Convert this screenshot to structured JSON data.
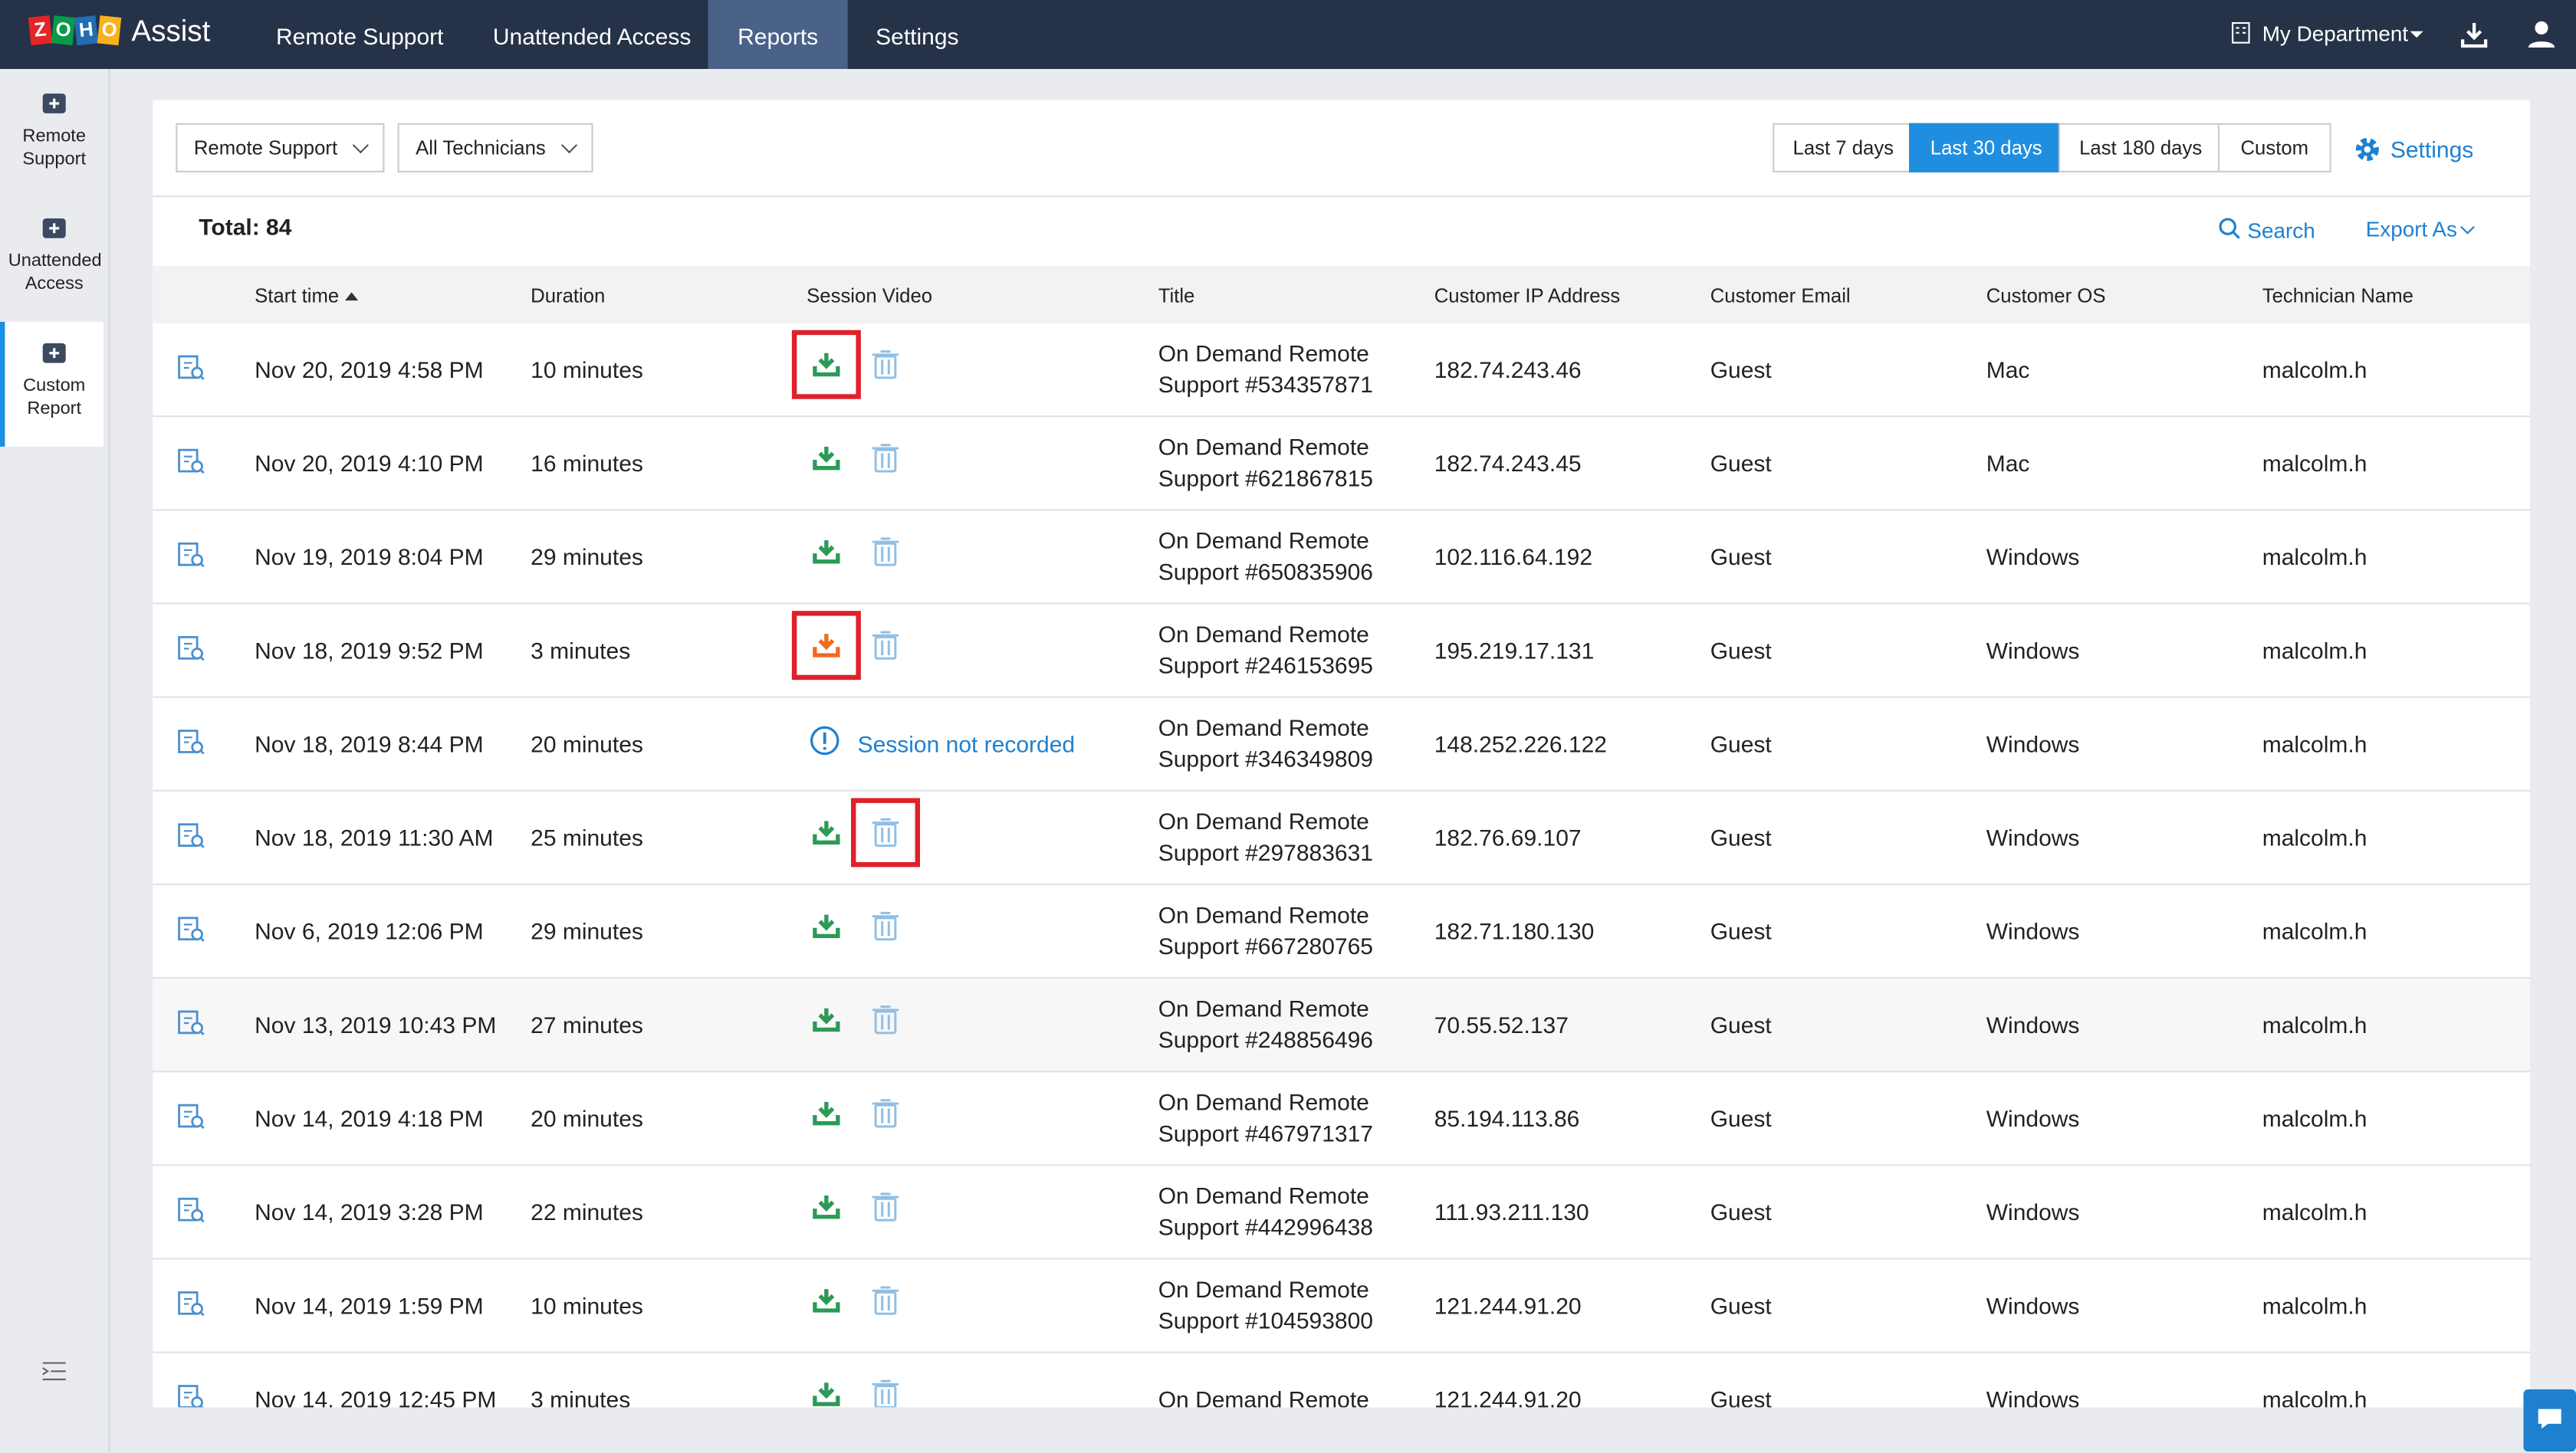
{
  "header": {
    "logo": "ZOHO",
    "brand": "Assist",
    "tabs": [
      "Remote Support",
      "Unattended Access",
      "Reports",
      "Settings"
    ],
    "department": "My Department"
  },
  "sidebar": [
    "Remote Support",
    "Unattended Access",
    "Custom Report"
  ],
  "filters": {
    "session_type": "Remote Support",
    "technicians": "All Technicians",
    "ranges": [
      "Last 7 days",
      "Last 30 days",
      "Last 180 days",
      "Custom"
    ],
    "settings": "Settings"
  },
  "toolbar": {
    "total": "Total: 84",
    "search": "Search",
    "export": "Export As"
  },
  "table": {
    "columns": [
      "Start time",
      "Duration",
      "Session Video",
      "Title",
      "Customer IP Address",
      "Customer Email",
      "Customer OS",
      "Technician Name"
    ],
    "rows": [
      {
        "start": "Nov 20, 2019 4:58 PM",
        "duration": "10 minutes",
        "title": "On Demand Remote Support #534357871",
        "ip": "182.74.243.46",
        "email": "Guest",
        "os": "Mac",
        "tech": "malcolm.h"
      },
      {
        "start": "Nov 20, 2019 4:10 PM",
        "duration": "16 minutes",
        "title": "On Demand Remote Support #621867815",
        "ip": "182.74.243.45",
        "email": "Guest",
        "os": "Mac",
        "tech": "malcolm.h"
      },
      {
        "start": "Nov 19, 2019 8:04 PM",
        "duration": "29 minutes",
        "title": "On Demand Remote Support #650835906",
        "ip": "102.116.64.192",
        "email": "Guest",
        "os": "Windows",
        "tech": "malcolm.h"
      },
      {
        "start": "Nov 18, 2019 9:52 PM",
        "duration": "3 minutes",
        "title": "On Demand Remote Support #246153695",
        "ip": "195.219.17.131",
        "email": "Guest",
        "os": "Windows",
        "tech": "malcolm.h"
      },
      {
        "start": "Nov 18, 2019 8:44 PM",
        "duration": "20 minutes",
        "note": "Session not recorded",
        "title": "On Demand Remote Support #346349809",
        "ip": "148.252.226.122",
        "email": "Guest",
        "os": "Windows",
        "tech": "malcolm.h"
      },
      {
        "start": "Nov 18, 2019 11:30 AM",
        "duration": "25 minutes",
        "title": "On Demand Remote Support #297883631",
        "ip": "182.76.69.107",
        "email": "Guest",
        "os": "Windows",
        "tech": "malcolm.h"
      },
      {
        "start": "Nov 6, 2019 12:06 PM",
        "duration": "29 minutes",
        "title": "On Demand Remote Support #667280765",
        "ip": "182.71.180.130",
        "email": "Guest",
        "os": "Windows",
        "tech": "malcolm.h"
      },
      {
        "start": "Nov 13, 2019 10:43 PM",
        "duration": "27 minutes",
        "title": "On Demand Remote Support #248856496",
        "ip": "70.55.52.137",
        "email": "Guest",
        "os": "Windows",
        "tech": "malcolm.h"
      },
      {
        "start": "Nov 14, 2019 4:18 PM",
        "duration": "20 minutes",
        "title": "On Demand Remote Support #467971317",
        "ip": "85.194.113.86",
        "email": "Guest",
        "os": "Windows",
        "tech": "malcolm.h"
      },
      {
        "start": "Nov 14, 2019 3:28 PM",
        "duration": "22 minutes",
        "title": "On Demand Remote Support #442996438",
        "ip": "111.93.211.130",
        "email": "Guest",
        "os": "Windows",
        "tech": "malcolm.h"
      },
      {
        "start": "Nov 14, 2019 1:59 PM",
        "duration": "10 minutes",
        "title": "On Demand Remote Support #104593800",
        "ip": "121.244.91.20",
        "email": "Guest",
        "os": "Windows",
        "tech": "malcolm.h"
      },
      {
        "start": "Nov 14, 2019 12:45 PM",
        "duration": "3 minutes",
        "title": "On Demand Remote",
        "ip": "121.244.91.20",
        "email": "Guest",
        "os": "Windows",
        "tech": "malcolm.h"
      }
    ]
  }
}
